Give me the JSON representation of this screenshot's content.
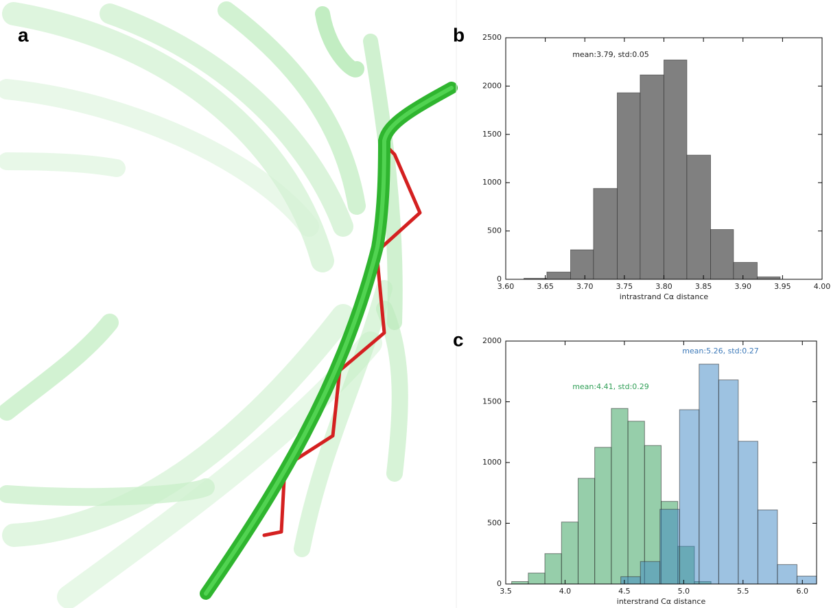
{
  "figure": {
    "labels": [
      "a",
      "b",
      "c"
    ]
  },
  "chart_data": [
    {
      "type": "histogram",
      "xlabel": "intrastrand Cα distance",
      "annotations": [
        {
          "text": "mean:3.79, std:0.05",
          "color": "#222222"
        }
      ],
      "xlim": [
        3.6,
        4.0
      ],
      "ylim": [
        0,
        2500
      ],
      "xticks": [
        {
          "value": 3.6,
          "label": "3.60"
        },
        3.65,
        {
          "value": 3.7,
          "label": "3.70"
        },
        3.75,
        {
          "value": 3.8,
          "label": "3.80"
        },
        3.85,
        {
          "value": 3.9,
          "label": "3.90"
        },
        3.95,
        {
          "value": 4.0,
          "label": "4.00"
        }
      ],
      "yticks": [
        0,
        500,
        1000,
        1500,
        2000,
        2500
      ],
      "series": [
        {
          "color": "#808080",
          "opacity": 1,
          "bins": [
            3.623,
            3.652,
            3.682,
            3.711,
            3.741,
            3.77,
            3.8,
            3.829,
            3.859,
            3.888,
            3.918,
            3.947
          ],
          "values": [
            10,
            75,
            305,
            940,
            1930,
            2115,
            2270,
            1285,
            515,
            175,
            25
          ]
        }
      ]
    },
    {
      "type": "histogram",
      "xlabel": "interstrand Cα distance",
      "annotations": [
        {
          "text": "mean:4.41, std:0.29",
          "color": "#2e9e55"
        },
        {
          "text": "mean:5.26, std:0.27",
          "color": "#3b78b8"
        }
      ],
      "xlim": [
        3.5,
        6.12
      ],
      "ylim": [
        0,
        2000
      ],
      "xticks": [
        3.5,
        {
          "value": 4.0,
          "label": "4.0"
        },
        4.5,
        {
          "value": 5.0,
          "label": "5.0"
        },
        5.5,
        {
          "value": 6.0,
          "label": "6.0"
        }
      ],
      "yticks": [
        0,
        500,
        1000,
        1500,
        2000
      ],
      "series": [
        {
          "color": "#2e9e55",
          "opacity": 0.5,
          "bins": [
            3.55,
            3.69,
            3.83,
            3.97,
            4.11,
            4.25,
            4.39,
            4.53,
            4.67,
            4.81,
            4.95,
            5.09,
            5.23
          ],
          "values": [
            20,
            90,
            250,
            510,
            870,
            1125,
            1445,
            1340,
            1140,
            680,
            310,
            20
          ]
        },
        {
          "color": "#3b86c4",
          "opacity": 0.5,
          "bins": [
            4.47,
            4.635,
            4.8,
            4.965,
            5.13,
            5.295,
            5.46,
            5.625,
            5.79,
            5.955,
            6.12
          ],
          "values": [
            60,
            185,
            615,
            1435,
            1810,
            1680,
            1175,
            610,
            160,
            65
          ]
        }
      ]
    }
  ]
}
